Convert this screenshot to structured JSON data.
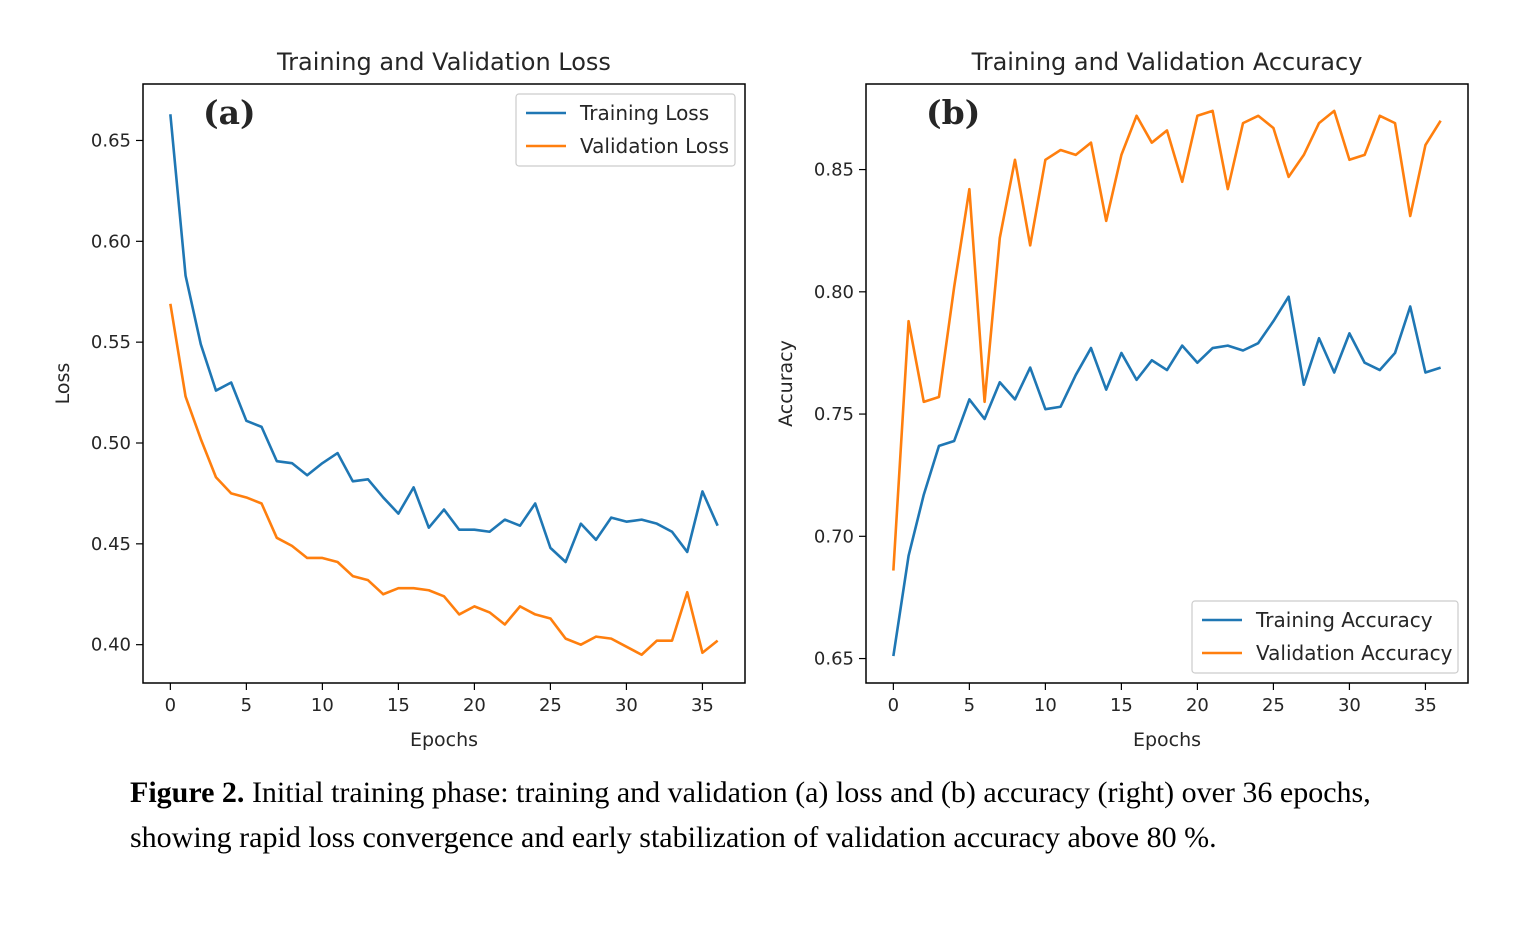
{
  "chart_data": [
    {
      "type": "line",
      "panel_label": "(a)",
      "title": "Training and Validation Loss",
      "xlabel": "Epochs",
      "ylabel": "Loss",
      "xlim": [
        -1.8,
        37.8
      ],
      "ylim": [
        0.381,
        0.678
      ],
      "xticks": [
        0,
        5,
        10,
        15,
        20,
        25,
        30,
        35
      ],
      "xtick_labels": [
        "0",
        "5",
        "10",
        "15",
        "20",
        "25",
        "30",
        "35"
      ],
      "yticks": [
        0.4,
        0.45,
        0.5,
        0.55,
        0.6,
        0.65
      ],
      "ytick_labels": [
        "0.40",
        "0.45",
        "0.50",
        "0.55",
        "0.60",
        "0.65"
      ],
      "legend": "top-right",
      "grid": false,
      "x": [
        0,
        1,
        2,
        3,
        4,
        5,
        6,
        7,
        8,
        9,
        10,
        11,
        12,
        13,
        14,
        15,
        16,
        17,
        18,
        19,
        20,
        21,
        22,
        23,
        24,
        25,
        26,
        27,
        28,
        29,
        30,
        31,
        32,
        33,
        34,
        35,
        36
      ],
      "series": [
        {
          "name": "Training Loss",
          "color": "#1f77b4",
          "values": [
            0.663,
            0.583,
            0.549,
            0.526,
            0.53,
            0.511,
            0.508,
            0.491,
            0.49,
            0.484,
            0.49,
            0.495,
            0.481,
            0.482,
            0.473,
            0.465,
            0.478,
            0.458,
            0.467,
            0.457,
            0.457,
            0.456,
            0.462,
            0.459,
            0.47,
            0.448,
            0.441,
            0.46,
            0.452,
            0.463,
            0.461,
            0.462,
            0.46,
            0.456,
            0.446,
            0.476,
            0.459
          ]
        },
        {
          "name": "Validation Loss",
          "color": "#ff7f0e",
          "values": [
            0.569,
            0.523,
            0.502,
            0.483,
            0.475,
            0.473,
            0.47,
            0.453,
            0.449,
            0.443,
            0.443,
            0.441,
            0.434,
            0.432,
            0.425,
            0.428,
            0.428,
            0.427,
            0.424,
            0.415,
            0.419,
            0.416,
            0.41,
            0.419,
            0.415,
            0.413,
            0.403,
            0.4,
            0.404,
            0.403,
            0.399,
            0.395,
            0.402,
            0.402,
            0.426,
            0.396,
            0.402
          ]
        }
      ]
    },
    {
      "type": "line",
      "panel_label": "(b)",
      "title": "Training and Validation Accuracy",
      "xlabel": "Epochs",
      "ylabel": "Accuracy",
      "xlim": [
        -1.8,
        37.8
      ],
      "ylim": [
        0.64,
        0.885
      ],
      "xticks": [
        0,
        5,
        10,
        15,
        20,
        25,
        30,
        35
      ],
      "xtick_labels": [
        "0",
        "5",
        "10",
        "15",
        "20",
        "25",
        "30",
        "35"
      ],
      "yticks": [
        0.65,
        0.7,
        0.75,
        0.8,
        0.85
      ],
      "ytick_labels": [
        "0.65",
        "0.70",
        "0.75",
        "0.80",
        "0.85"
      ],
      "legend": "bottom-right",
      "grid": false,
      "x": [
        0,
        1,
        2,
        3,
        4,
        5,
        6,
        7,
        8,
        9,
        10,
        11,
        12,
        13,
        14,
        15,
        16,
        17,
        18,
        19,
        20,
        21,
        22,
        23,
        24,
        25,
        26,
        27,
        28,
        29,
        30,
        31,
        32,
        33,
        34,
        35,
        36
      ],
      "series": [
        {
          "name": "Training Accuracy",
          "color": "#1f77b4",
          "values": [
            0.651,
            0.692,
            0.717,
            0.737,
            0.739,
            0.756,
            0.748,
            0.763,
            0.756,
            0.769,
            0.752,
            0.753,
            0.766,
            0.777,
            0.76,
            0.775,
            0.764,
            0.772,
            0.768,
            0.778,
            0.771,
            0.777,
            0.778,
            0.776,
            0.779,
            0.788,
            0.798,
            0.762,
            0.781,
            0.767,
            0.783,
            0.771,
            0.768,
            0.775,
            0.794,
            0.767,
            0.769
          ]
        },
        {
          "name": "Validation Accuracy",
          "color": "#ff7f0e",
          "values": [
            0.686,
            0.788,
            0.755,
            0.757,
            0.802,
            0.842,
            0.755,
            0.822,
            0.854,
            0.819,
            0.854,
            0.858,
            0.856,
            0.861,
            0.829,
            0.856,
            0.872,
            0.861,
            0.866,
            0.845,
            0.872,
            0.874,
            0.842,
            0.869,
            0.872,
            0.867,
            0.847,
            0.856,
            0.869,
            0.874,
            0.854,
            0.856,
            0.872,
            0.869,
            0.831,
            0.86,
            0.87
          ]
        }
      ]
    }
  ],
  "caption": {
    "label": "Figure 2.",
    "text": " Initial training phase: training and validation (a) loss and (b) accuracy (right) over 36 epochs, showing rapid loss convergence and early stabilization of validation accuracy above 80 %."
  }
}
